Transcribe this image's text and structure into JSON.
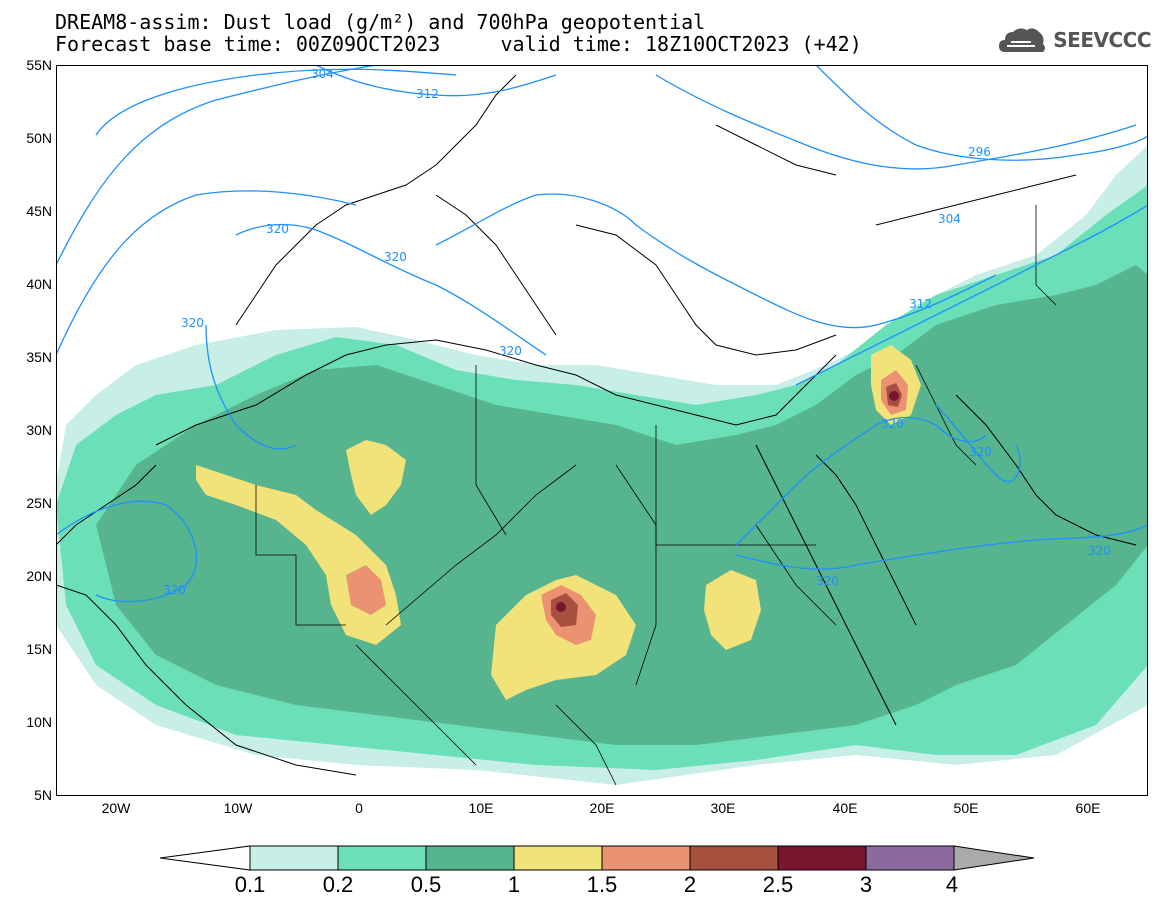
{
  "header": {
    "line1": "DREAM8-assim: Dust load (g/m²) and 700hPa geopotential",
    "line2": "Forecast base time: 00Z09OCT2023     valid time: 18Z10OCT2023 (+42)",
    "logo_text": "SEEVCCC",
    "logo_icon": "cloud-icon"
  },
  "map": {
    "projection": "lat-lon",
    "lon_range": [
      -25,
      65
    ],
    "lat_range": [
      5,
      55
    ],
    "lat_ticks": [
      "55N",
      "50N",
      "45N",
      "40N",
      "35N",
      "30N",
      "25N",
      "20N",
      "15N",
      "10N",
      "5N"
    ],
    "lon_ticks": [
      "20W",
      "10W",
      "0",
      "10E",
      "20E",
      "30E",
      "40E",
      "50E",
      "60E"
    ],
    "contour_labels": [
      "304",
      "312",
      "320",
      "320",
      "320",
      "320",
      "320",
      "296",
      "304",
      "312",
      "320",
      "320",
      "320",
      "320"
    ],
    "land_border_color": "#000000",
    "contour_color": "#1e90ff"
  },
  "legend": {
    "labels": [
      "0.1",
      "0.2",
      "0.5",
      "1",
      "1.5",
      "2",
      "2.5",
      "3",
      "4"
    ],
    "colors": [
      "#c8eee8",
      "#6be0b8",
      "#56b48e",
      "#f2e27a",
      "#ea9271",
      "#a8503f",
      "#7a1530",
      "#8c6aa0"
    ],
    "under_color": "#ffffff",
    "over_color": "#aaaaaa"
  }
}
